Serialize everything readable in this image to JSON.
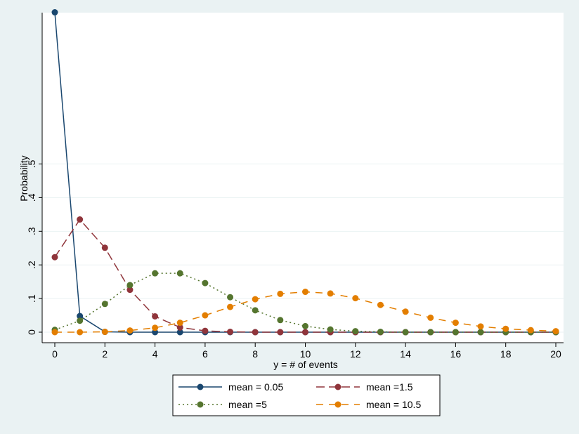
{
  "chart_data": {
    "type": "line",
    "xlabel": "y = # of events",
    "ylabel": "Probability",
    "xlim": [
      0,
      20
    ],
    "ylim": [
      0,
      0.95
    ],
    "x_ticks": [
      "0",
      "2",
      "4",
      "6",
      "8",
      "10",
      "12",
      "14",
      "16",
      "18",
      "20"
    ],
    "y_ticks": [
      "0",
      ".1",
      ".2",
      ".3",
      ".4",
      ".5"
    ],
    "x": [
      0,
      1,
      2,
      3,
      4,
      5,
      6,
      7,
      8,
      9,
      10,
      11,
      12,
      13,
      14,
      15,
      16,
      17,
      18,
      19,
      20
    ],
    "grid": true,
    "legend_position": "bottom",
    "series": [
      {
        "name": "mean = 0.05",
        "color": "#1a476f",
        "dash": "solid",
        "values": [
          0.951,
          0.048,
          0.001,
          0,
          0,
          0,
          0,
          0,
          0,
          0,
          0,
          0,
          0,
          0,
          0,
          0,
          0,
          0,
          0,
          0,
          0
        ]
      },
      {
        "name": "mean =1.5",
        "color": "#90353b",
        "dash": "long-dash",
        "values": [
          0.223,
          0.335,
          0.251,
          0.126,
          0.047,
          0.014,
          0.004,
          0.001,
          0,
          0,
          0,
          0,
          0,
          0,
          0,
          0,
          0,
          0,
          0,
          0,
          0
        ]
      },
      {
        "name": "mean =5",
        "color": "#55752f",
        "dash": "dotted",
        "values": [
          0.007,
          0.034,
          0.084,
          0.14,
          0.175,
          0.175,
          0.146,
          0.104,
          0.065,
          0.036,
          0.018,
          0.008,
          0.003,
          0.001,
          0,
          0,
          0,
          0,
          0,
          0,
          0
        ]
      },
      {
        "name": "mean = 10.5",
        "color": "#e37e00",
        "dash": "dashed",
        "values": [
          0,
          0,
          0.001,
          0.005,
          0.013,
          0.028,
          0.05,
          0.075,
          0.098,
          0.114,
          0.12,
          0.115,
          0.101,
          0.081,
          0.061,
          0.043,
          0.028,
          0.017,
          0.01,
          0.006,
          0.003
        ]
      }
    ]
  }
}
